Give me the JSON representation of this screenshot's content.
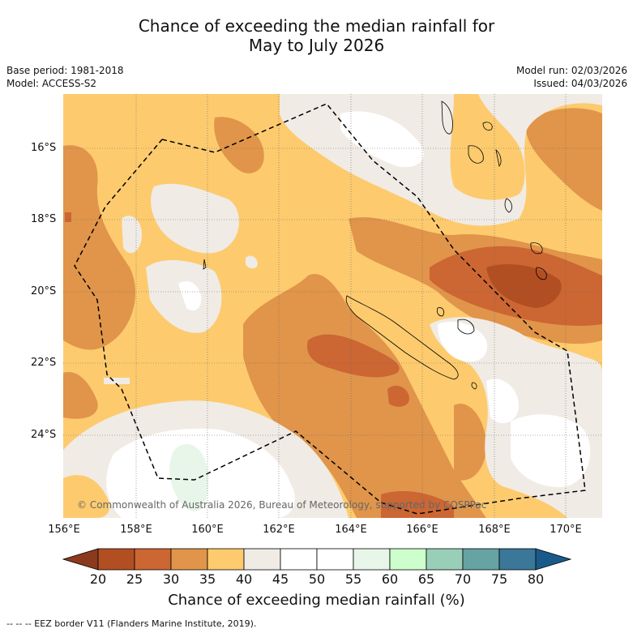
{
  "title_line1": "Chance of exceeding the median rainfall for",
  "title_line2": "May to July 2026",
  "base_period": "Base period: 1981-2018",
  "model": "Model: ACCESS-S2",
  "model_run": "Model run: 02/03/2026",
  "issued": "Issued: 04/03/2026",
  "copyright": "© Commonwealth of Australia 2026, Bureau of Meteorology, supported by COSPPac",
  "lat_labels": [
    "16°S",
    "18°S",
    "20°S",
    "22°S",
    "24°S"
  ],
  "lon_labels": [
    "156°E",
    "158°E",
    "160°E",
    "162°E",
    "164°E",
    "166°E",
    "168°E",
    "170°E"
  ],
  "colorbar": {
    "ticks": [
      "20",
      "25",
      "30",
      "35",
      "40",
      "45",
      "50",
      "55",
      "60",
      "65",
      "70",
      "75",
      "80"
    ],
    "colors": [
      "#8b3a1e",
      "#b24f22",
      "#cc6633",
      "#e0954a",
      "#fdcb6e",
      "#f0ebe5",
      "#ffffff",
      "#ffffff",
      "#e8f5e9",
      "#ccffcc",
      "#99cfb8",
      "#66a3a3",
      "#3a7799",
      "#1a5a8a"
    ],
    "label": "Chance of exceeding median rainfall (%)"
  },
  "footnote": "--  --  -- EEZ border V11 (Flanders Marine Institute, 2019).",
  "colors": {
    "ocean_default": "#fdcb6e"
  }
}
